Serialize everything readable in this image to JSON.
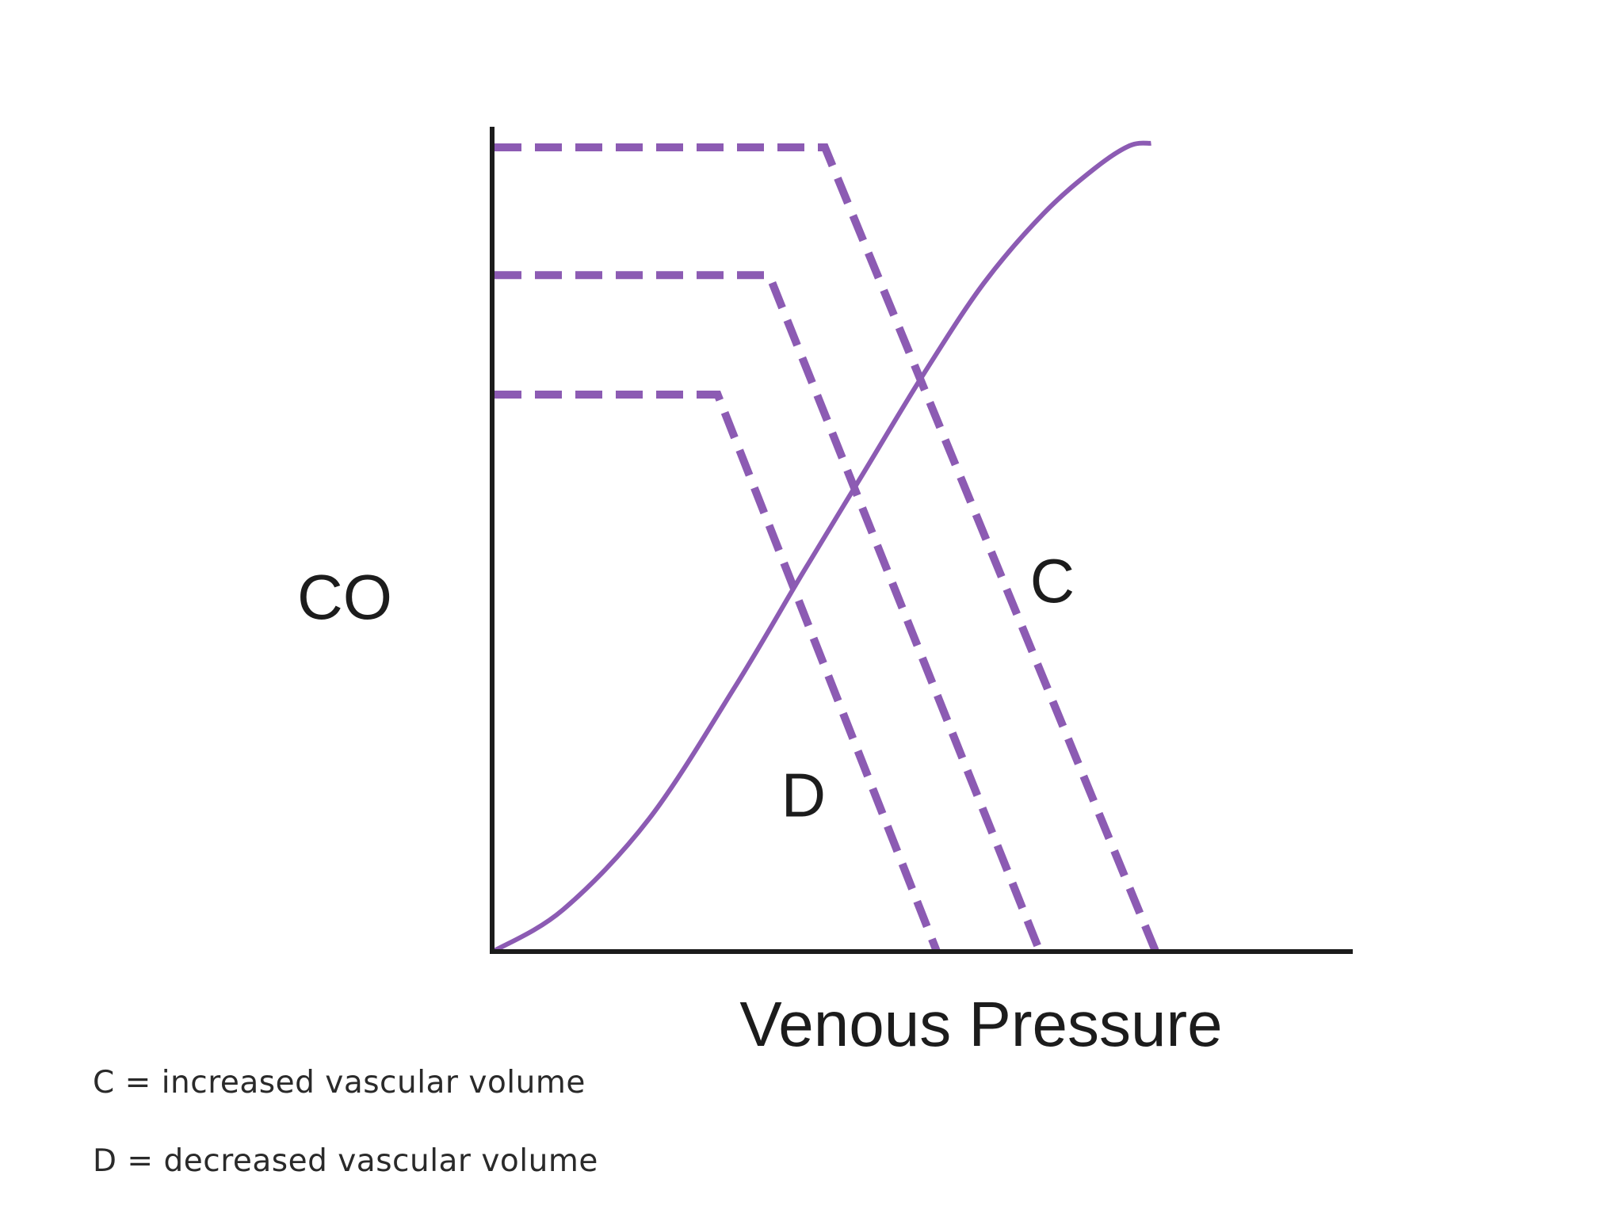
{
  "chart_data": {
    "type": "line",
    "xlabel": "Venous Pressure",
    "ylabel": "CO",
    "grid": false,
    "xlim": [
      0,
      100
    ],
    "ylim": [
      0,
      100
    ],
    "colors": {
      "curves": "#8c5bb3",
      "axes": "#1c1c1c"
    },
    "series": [
      {
        "style": "solid",
        "x": [
          0,
          8,
          18,
          28,
          36,
          43,
          50,
          57,
          64,
          70,
          74,
          76.5
        ],
        "y": [
          0,
          5,
          16,
          32,
          46,
          58,
          70,
          81,
          89.5,
          95,
          97.7,
          98
        ]
      },
      {
        "style": "dashed",
        "x": [
          0,
          26,
          51.5
        ],
        "y": [
          67.5,
          67.5,
          0
        ]
      },
      {
        "style": "dashed",
        "x": [
          0,
          32,
          63.5
        ],
        "y": [
          82,
          82,
          0
        ]
      },
      {
        "style": "dashed",
        "x": [
          0,
          38.5,
          77
        ],
        "y": [
          97.5,
          97.5,
          0
        ]
      }
    ],
    "annotations": [
      {
        "text": "C",
        "x": 65,
        "y": 45
      },
      {
        "text": "D",
        "x": 36,
        "y": 19
      }
    ]
  },
  "legend_notes": [
    "C = increased vascular volume",
    "D = decreased vascular volume"
  ]
}
